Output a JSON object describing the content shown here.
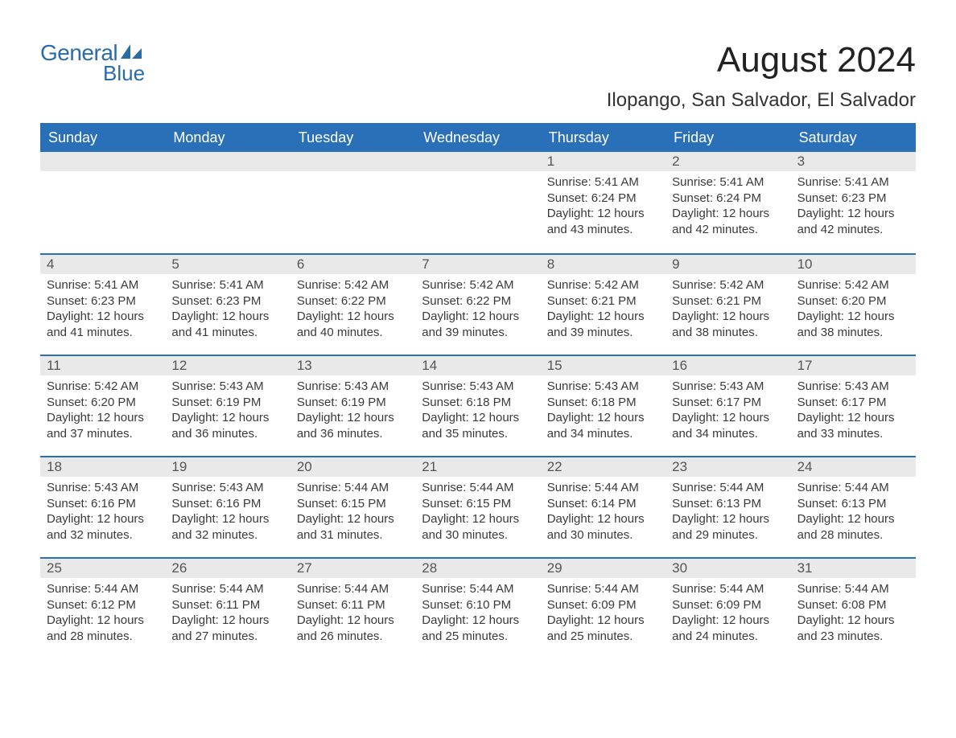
{
  "brand": {
    "general": "General",
    "blue": "Blue"
  },
  "title": "August 2024",
  "location": "Ilopango, San Salvador, El Salvador",
  "colors": {
    "header_bg": "#2a70b8",
    "header_text": "#ffffff",
    "row_border": "#2a70b8",
    "daynum_bg": "#e9e9e9",
    "body_text": "#3a3a3a",
    "logo_color": "#2a6ca8",
    "page_bg": "#ffffff"
  },
  "fonts": {
    "title_size_pt": 33,
    "location_size_pt": 18,
    "header_size_pt": 14,
    "body_size_pt": 11
  },
  "day_headers": [
    "Sunday",
    "Monday",
    "Tuesday",
    "Wednesday",
    "Thursday",
    "Friday",
    "Saturday"
  ],
  "weeks": [
    [
      null,
      null,
      null,
      null,
      {
        "n": "1",
        "sunrise": "5:41 AM",
        "sunset": "6:24 PM",
        "daylight": "12 hours and 43 minutes."
      },
      {
        "n": "2",
        "sunrise": "5:41 AM",
        "sunset": "6:24 PM",
        "daylight": "12 hours and 42 minutes."
      },
      {
        "n": "3",
        "sunrise": "5:41 AM",
        "sunset": "6:23 PM",
        "daylight": "12 hours and 42 minutes."
      }
    ],
    [
      {
        "n": "4",
        "sunrise": "5:41 AM",
        "sunset": "6:23 PM",
        "daylight": "12 hours and 41 minutes."
      },
      {
        "n": "5",
        "sunrise": "5:41 AM",
        "sunset": "6:23 PM",
        "daylight": "12 hours and 41 minutes."
      },
      {
        "n": "6",
        "sunrise": "5:42 AM",
        "sunset": "6:22 PM",
        "daylight": "12 hours and 40 minutes."
      },
      {
        "n": "7",
        "sunrise": "5:42 AM",
        "sunset": "6:22 PM",
        "daylight": "12 hours and 39 minutes."
      },
      {
        "n": "8",
        "sunrise": "5:42 AM",
        "sunset": "6:21 PM",
        "daylight": "12 hours and 39 minutes."
      },
      {
        "n": "9",
        "sunrise": "5:42 AM",
        "sunset": "6:21 PM",
        "daylight": "12 hours and 38 minutes."
      },
      {
        "n": "10",
        "sunrise": "5:42 AM",
        "sunset": "6:20 PM",
        "daylight": "12 hours and 38 minutes."
      }
    ],
    [
      {
        "n": "11",
        "sunrise": "5:42 AM",
        "sunset": "6:20 PM",
        "daylight": "12 hours and 37 minutes."
      },
      {
        "n": "12",
        "sunrise": "5:43 AM",
        "sunset": "6:19 PM",
        "daylight": "12 hours and 36 minutes."
      },
      {
        "n": "13",
        "sunrise": "5:43 AM",
        "sunset": "6:19 PM",
        "daylight": "12 hours and 36 minutes."
      },
      {
        "n": "14",
        "sunrise": "5:43 AM",
        "sunset": "6:18 PM",
        "daylight": "12 hours and 35 minutes."
      },
      {
        "n": "15",
        "sunrise": "5:43 AM",
        "sunset": "6:18 PM",
        "daylight": "12 hours and 34 minutes."
      },
      {
        "n": "16",
        "sunrise": "5:43 AM",
        "sunset": "6:17 PM",
        "daylight": "12 hours and 34 minutes."
      },
      {
        "n": "17",
        "sunrise": "5:43 AM",
        "sunset": "6:17 PM",
        "daylight": "12 hours and 33 minutes."
      }
    ],
    [
      {
        "n": "18",
        "sunrise": "5:43 AM",
        "sunset": "6:16 PM",
        "daylight": "12 hours and 32 minutes."
      },
      {
        "n": "19",
        "sunrise": "5:43 AM",
        "sunset": "6:16 PM",
        "daylight": "12 hours and 32 minutes."
      },
      {
        "n": "20",
        "sunrise": "5:44 AM",
        "sunset": "6:15 PM",
        "daylight": "12 hours and 31 minutes."
      },
      {
        "n": "21",
        "sunrise": "5:44 AM",
        "sunset": "6:15 PM",
        "daylight": "12 hours and 30 minutes."
      },
      {
        "n": "22",
        "sunrise": "5:44 AM",
        "sunset": "6:14 PM",
        "daylight": "12 hours and 30 minutes."
      },
      {
        "n": "23",
        "sunrise": "5:44 AM",
        "sunset": "6:13 PM",
        "daylight": "12 hours and 29 minutes."
      },
      {
        "n": "24",
        "sunrise": "5:44 AM",
        "sunset": "6:13 PM",
        "daylight": "12 hours and 28 minutes."
      }
    ],
    [
      {
        "n": "25",
        "sunrise": "5:44 AM",
        "sunset": "6:12 PM",
        "daylight": "12 hours and 28 minutes."
      },
      {
        "n": "26",
        "sunrise": "5:44 AM",
        "sunset": "6:11 PM",
        "daylight": "12 hours and 27 minutes."
      },
      {
        "n": "27",
        "sunrise": "5:44 AM",
        "sunset": "6:11 PM",
        "daylight": "12 hours and 26 minutes."
      },
      {
        "n": "28",
        "sunrise": "5:44 AM",
        "sunset": "6:10 PM",
        "daylight": "12 hours and 25 minutes."
      },
      {
        "n": "29",
        "sunrise": "5:44 AM",
        "sunset": "6:09 PM",
        "daylight": "12 hours and 25 minutes."
      },
      {
        "n": "30",
        "sunrise": "5:44 AM",
        "sunset": "6:09 PM",
        "daylight": "12 hours and 24 minutes."
      },
      {
        "n": "31",
        "sunrise": "5:44 AM",
        "sunset": "6:08 PM",
        "daylight": "12 hours and 23 minutes."
      }
    ]
  ],
  "labels": {
    "sunrise_prefix": "Sunrise: ",
    "sunset_prefix": "Sunset: ",
    "daylight_prefix": "Daylight: "
  }
}
